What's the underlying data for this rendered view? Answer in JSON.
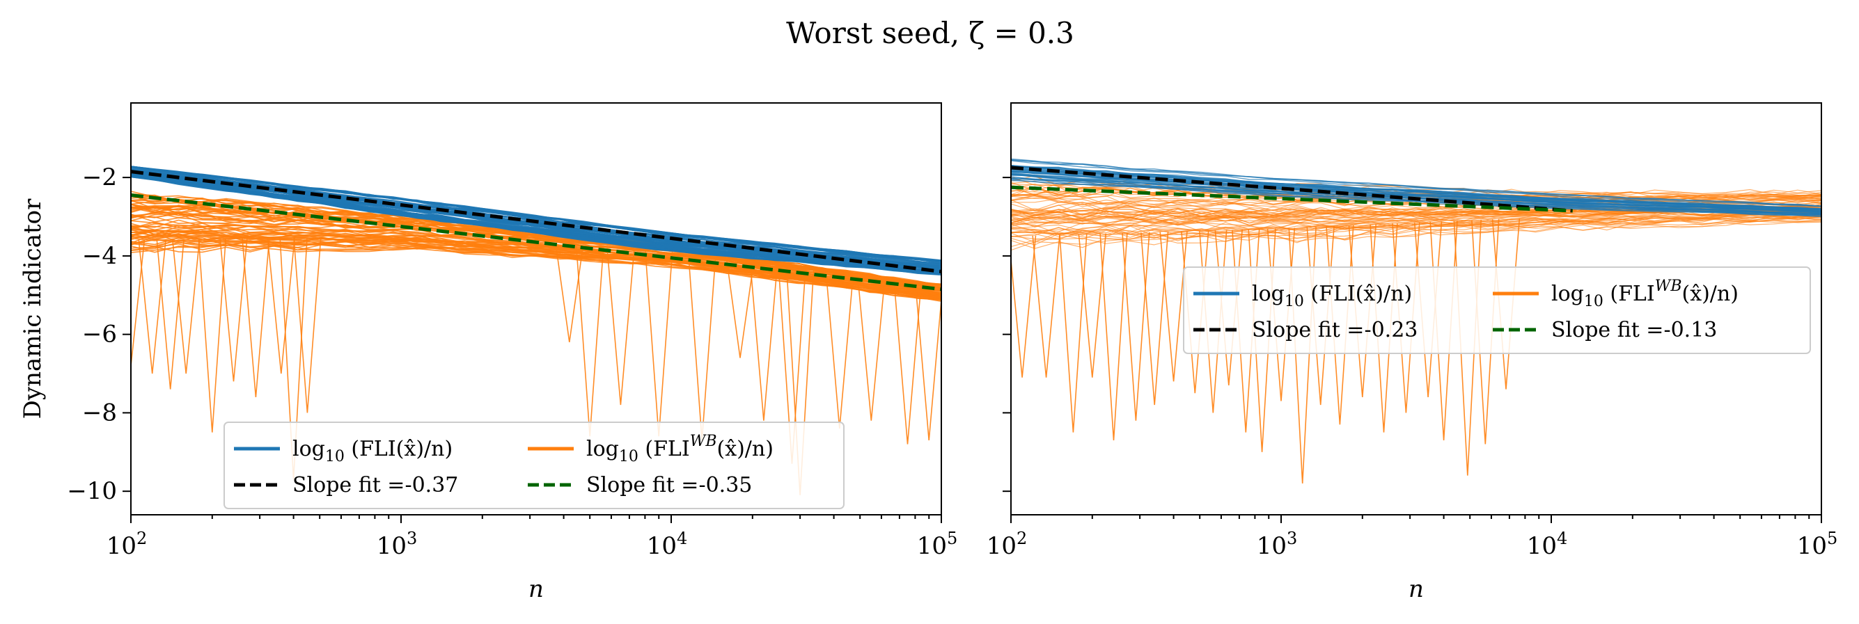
{
  "figure": {
    "title": "Worst seed, ζ = 0.3"
  },
  "colors": {
    "fli": "#1f77b4",
    "fli_wb": "#ff7f0e",
    "fit_fli": "#000000",
    "fit_wb": "#006400"
  },
  "chart_data": [
    {
      "type": "line",
      "panel": "left",
      "title": "",
      "xlabel": "n",
      "ylabel": "Dynamic indicator",
      "xscale": "log",
      "xlim": [
        100,
        100000
      ],
      "ylim": [
        -10.6,
        -0.1
      ],
      "xticks": [
        {
          "value": 100,
          "label": "10",
          "exp": "2"
        },
        {
          "value": 1000,
          "label": "10",
          "exp": "3"
        },
        {
          "value": 10000,
          "label": "10",
          "exp": "4"
        },
        {
          "value": 100000,
          "label": "10",
          "exp": "5"
        }
      ],
      "yticks": [
        {
          "value": -2,
          "label": "−2"
        },
        {
          "value": -4,
          "label": "−4"
        },
        {
          "value": -6,
          "label": "−6"
        },
        {
          "value": -8,
          "label": "−8"
        },
        {
          "value": -10,
          "label": "−10"
        }
      ],
      "legend": {
        "placement": "lower-center",
        "entries": [
          {
            "label_main": "log",
            "label_sub": "10",
            "label_rest": " (FLI(x̂)/n)",
            "style": "solid",
            "color": "#1f77b4"
          },
          {
            "label_main": "log",
            "label_sub": "10",
            "label_rest": " (FLI",
            "label_sup": "WB",
            "label_tail": "(x̂)/n)",
            "style": "solid",
            "color": "#ff7f0e"
          },
          {
            "label_main": "Slope fit =-0.37",
            "style": "dashed",
            "color": "#000000"
          },
          {
            "label_main": "Slope fit =-0.35",
            "style": "dashed",
            "color": "#006400"
          }
        ]
      },
      "series": [
        {
          "name": "log10 (FLI(x̂)/n)",
          "kind": "band",
          "x": [
            100,
            1000,
            10000,
            100000
          ],
          "y_low": [
            -2.0,
            -3.0,
            -3.9,
            -4.5
          ],
          "y_high": [
            -1.7,
            -2.5,
            -3.4,
            -4.1
          ]
        },
        {
          "name": "log10 (FLI^WB(x̂)/n)",
          "kind": "band",
          "x": [
            100,
            1000,
            10000,
            100000
          ],
          "y_low": [
            -4.0,
            -3.9,
            -4.3,
            -5.2
          ],
          "y_high": [
            -2.3,
            -2.9,
            -3.7,
            -4.7
          ]
        },
        {
          "name": "Slope fit =-0.37",
          "kind": "fit",
          "x": [
            100,
            100000
          ],
          "y": [
            -1.85,
            -4.4
          ]
        },
        {
          "name": "Slope fit =-0.35",
          "kind": "fit",
          "x": [
            100,
            100000
          ],
          "y": [
            -2.45,
            -4.85
          ]
        }
      ],
      "dips": [
        {
          "x": 100,
          "y": -6.8
        },
        {
          "x": 120,
          "y": -7.0
        },
        {
          "x": 140,
          "y": -7.4
        },
        {
          "x": 160,
          "y": -7.0
        },
        {
          "x": 200,
          "y": -8.5
        },
        {
          "x": 240,
          "y": -7.2
        },
        {
          "x": 290,
          "y": -7.6
        },
        {
          "x": 360,
          "y": -7.0
        },
        {
          "x": 400,
          "y": -9.7
        },
        {
          "x": 450,
          "y": -8.0
        },
        {
          "x": 4200,
          "y": -6.2
        },
        {
          "x": 5000,
          "y": -8.6
        },
        {
          "x": 6500,
          "y": -7.8
        },
        {
          "x": 9000,
          "y": -8.6
        },
        {
          "x": 13000,
          "y": -8.7
        },
        {
          "x": 18000,
          "y": -6.6
        },
        {
          "x": 22000,
          "y": -8.2
        },
        {
          "x": 28000,
          "y": -9.3
        },
        {
          "x": 30000,
          "y": -10.1
        },
        {
          "x": 42000,
          "y": -8.4
        },
        {
          "x": 55000,
          "y": -8.2
        },
        {
          "x": 75000,
          "y": -8.8
        },
        {
          "x": 90000,
          "y": -8.7
        }
      ]
    },
    {
      "type": "line",
      "panel": "right",
      "title": "",
      "xlabel": "n",
      "ylabel": "",
      "xscale": "log",
      "xlim": [
        100,
        100000
      ],
      "ylim": [
        -10.6,
        -0.1
      ],
      "xticks": [
        {
          "value": 100,
          "label": "10",
          "exp": "2"
        },
        {
          "value": 1000,
          "label": "10",
          "exp": "3"
        },
        {
          "value": 10000,
          "label": "10",
          "exp": "4"
        },
        {
          "value": 100000,
          "label": "10",
          "exp": "5"
        }
      ],
      "yticks": [
        {
          "value": -2
        },
        {
          "value": -4
        },
        {
          "value": -6
        },
        {
          "value": -8
        },
        {
          "value": -10
        }
      ],
      "legend": {
        "placement": "center-right",
        "entries": [
          {
            "label_main": "log",
            "label_sub": "10",
            "label_rest": " (FLI(x̂)/n)",
            "style": "solid",
            "color": "#1f77b4"
          },
          {
            "label_main": "log",
            "label_sub": "10",
            "label_rest": " (FLI",
            "label_sup": "WB",
            "label_tail": "(x̂)/n)",
            "style": "solid",
            "color": "#ff7f0e"
          },
          {
            "label_main": "Slope fit =-0.23",
            "style": "dashed",
            "color": "#000000"
          },
          {
            "label_main": "Slope fit =-0.13",
            "style": "dashed",
            "color": "#006400"
          }
        ]
      },
      "series": [
        {
          "name": "log10 (FLI(x̂)/n)",
          "kind": "band",
          "x": [
            100,
            1000,
            10000,
            100000
          ],
          "y_low": [
            -2.1,
            -2.5,
            -2.8,
            -3.0
          ],
          "y_high": [
            -1.5,
            -2.0,
            -2.4,
            -2.7
          ]
        },
        {
          "name": "log10 (FLI^WB(x̂)/n)",
          "kind": "band",
          "x": [
            100,
            1000,
            10000,
            100000
          ],
          "y_low": [
            -3.9,
            -3.7,
            -3.4,
            -3.2
          ],
          "y_high": [
            -1.9,
            -2.1,
            -2.3,
            -2.3
          ]
        },
        {
          "name": "Slope fit =-0.23",
          "kind": "fit",
          "x": [
            100,
            12000
          ],
          "y": [
            -1.75,
            -2.85
          ]
        },
        {
          "name": "Slope fit =-0.13",
          "kind": "fit",
          "x": [
            100,
            12000
          ],
          "y": [
            -2.25,
            -2.85
          ]
        }
      ],
      "dips": [
        {
          "x": 110,
          "y": -7.1
        },
        {
          "x": 135,
          "y": -7.1
        },
        {
          "x": 170,
          "y": -8.5
        },
        {
          "x": 200,
          "y": -7.1
        },
        {
          "x": 240,
          "y": -8.7
        },
        {
          "x": 290,
          "y": -8.2
        },
        {
          "x": 340,
          "y": -7.8
        },
        {
          "x": 400,
          "y": -7.2
        },
        {
          "x": 480,
          "y": -7.5
        },
        {
          "x": 560,
          "y": -8.0
        },
        {
          "x": 640,
          "y": -7.3
        },
        {
          "x": 740,
          "y": -8.5
        },
        {
          "x": 850,
          "y": -9.0
        },
        {
          "x": 1000,
          "y": -7.7
        },
        {
          "x": 1200,
          "y": -9.8
        },
        {
          "x": 1400,
          "y": -7.8
        },
        {
          "x": 1650,
          "y": -8.3
        },
        {
          "x": 2000,
          "y": -7.6
        },
        {
          "x": 2400,
          "y": -8.5
        },
        {
          "x": 2900,
          "y": -8.0
        },
        {
          "x": 3500,
          "y": -7.6
        },
        {
          "x": 4000,
          "y": -8.7
        },
        {
          "x": 4900,
          "y": -9.6
        },
        {
          "x": 5700,
          "y": -8.8
        },
        {
          "x": 6800,
          "y": -7.4
        }
      ]
    }
  ]
}
